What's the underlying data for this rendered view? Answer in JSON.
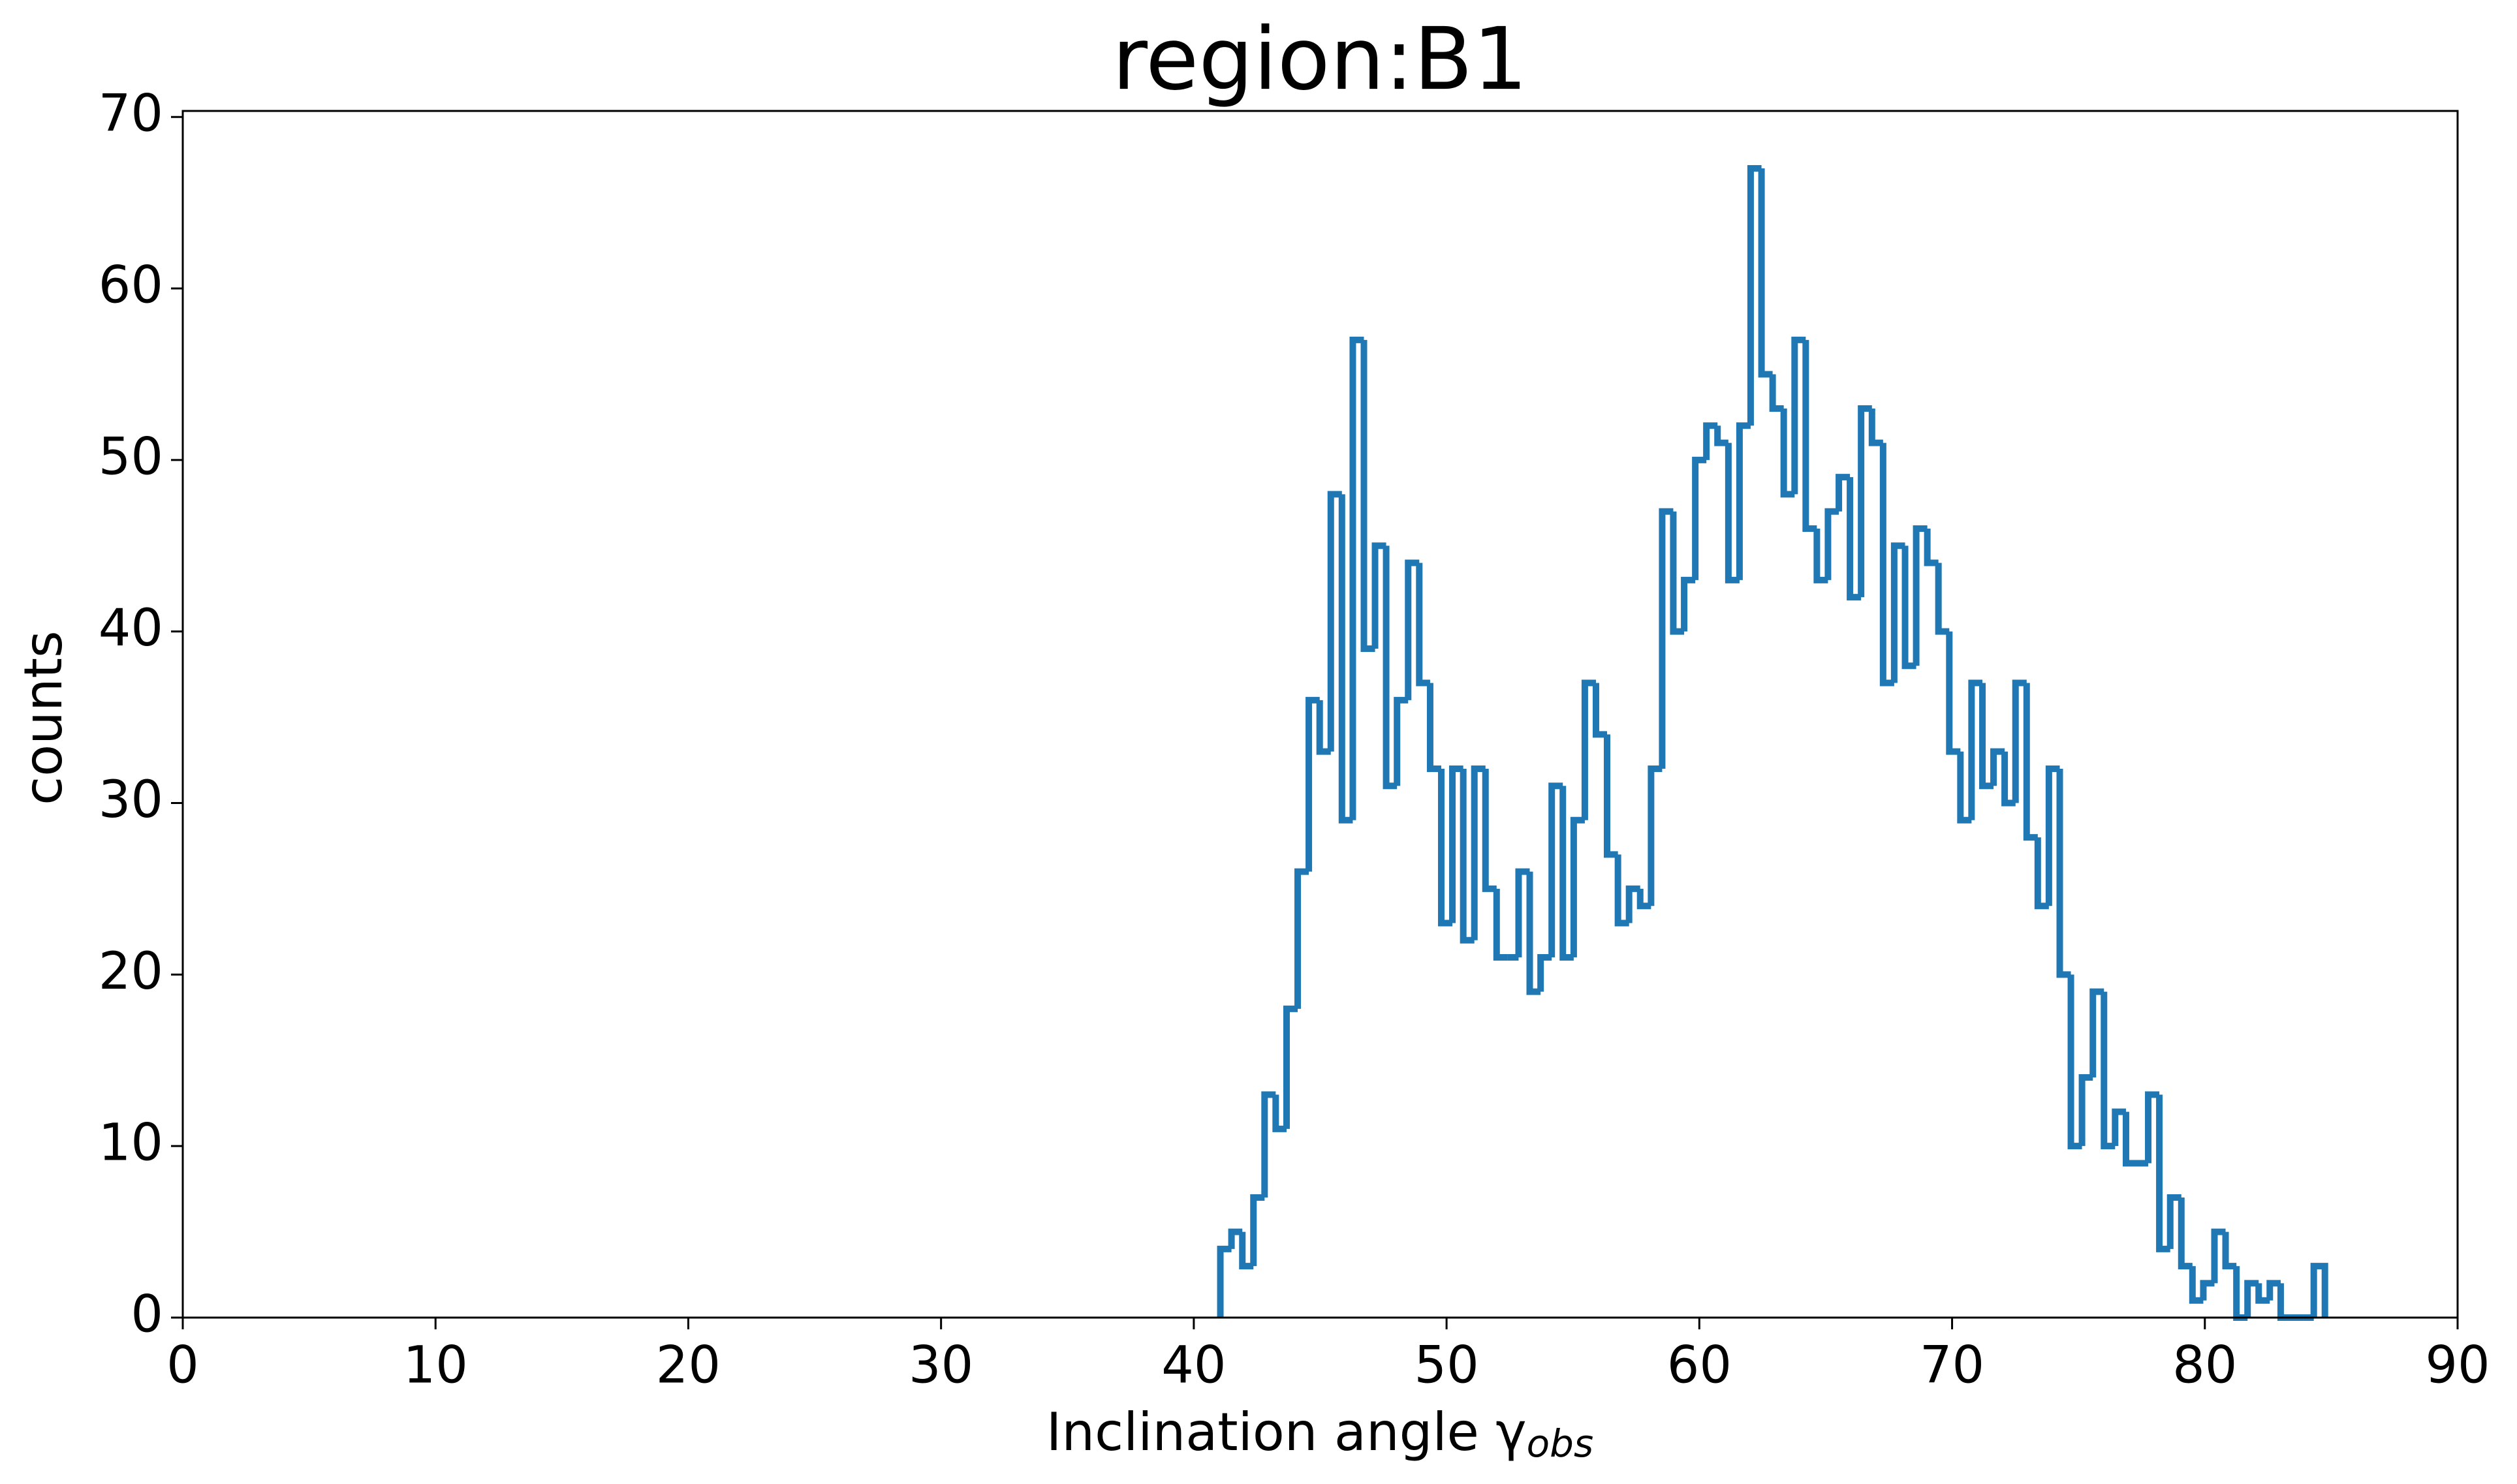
{
  "chart_data": {
    "type": "histogram",
    "title": "region:B1",
    "xlabel": "Inclination angle γ",
    "xlabel_subscript": "obs",
    "ylabel": "counts",
    "color": "#1f77b4",
    "grid": false,
    "xlim": [
      0,
      90
    ],
    "xticks": [
      0,
      10,
      20,
      30,
      40,
      50,
      60,
      70,
      80,
      90
    ],
    "ylim": [
      0,
      70.35
    ],
    "yticks": [
      0,
      10,
      20,
      30,
      40,
      50,
      60,
      70
    ],
    "bins": [
      41.05,
      41.49,
      41.92,
      42.36,
      42.8,
      43.24,
      43.67,
      44.11,
      44.55,
      44.98,
      45.42,
      45.86,
      46.29,
      46.73,
      47.17,
      47.61,
      48.04,
      48.48,
      48.92,
      49.35,
      49.79,
      50.23,
      50.66,
      51.1,
      51.54,
      51.98,
      52.41,
      52.85,
      53.29,
      53.72,
      54.16,
      54.6,
      55.03,
      55.47,
      55.91,
      56.35,
      56.78,
      57.22,
      57.66,
      58.09,
      58.53,
      58.97,
      59.4,
      59.84,
      60.28,
      60.72,
      61.15,
      61.59,
      62.03,
      62.46,
      62.9,
      63.34,
      63.77,
      64.21,
      64.65,
      65.09,
      65.52,
      65.96,
      66.4,
      66.83,
      67.27,
      67.71,
      68.14,
      68.58,
      69.02,
      69.46,
      69.89,
      70.33,
      70.77,
      71.2,
      71.64,
      72.08,
      72.51,
      72.95,
      73.39,
      73.83,
      74.26,
      74.7,
      75.14,
      75.57,
      76.01,
      76.45,
      76.88,
      77.32,
      77.76,
      78.2,
      78.63,
      79.07,
      79.51,
      79.94,
      80.38,
      80.82,
      81.25,
      81.69,
      82.13,
      82.57,
      83.0,
      83.44,
      83.88,
      84.31,
      84.75
    ],
    "values": [
      4,
      5,
      3,
      7,
      13,
      11,
      18,
      26,
      36,
      33,
      48,
      29,
      57,
      39,
      45,
      31,
      36,
      44,
      37,
      32,
      23,
      32,
      22,
      32,
      25,
      21,
      21,
      26,
      19,
      21,
      31,
      21,
      29,
      37,
      34,
      27,
      23,
      25,
      24,
      32,
      47,
      40,
      43,
      50,
      52,
      51,
      43,
      52,
      67,
      55,
      53,
      48,
      57,
      46,
      43,
      47,
      49,
      42,
      53,
      51,
      37,
      45,
      38,
      46,
      44,
      40,
      33,
      29,
      37,
      31,
      33,
      30,
      37,
      28,
      24,
      32,
      20,
      10,
      14,
      19,
      10,
      12,
      9,
      9,
      13,
      4,
      7,
      3,
      1,
      2,
      5,
      3,
      0,
      2,
      1,
      2,
      0,
      0,
      0,
      3
    ]
  }
}
